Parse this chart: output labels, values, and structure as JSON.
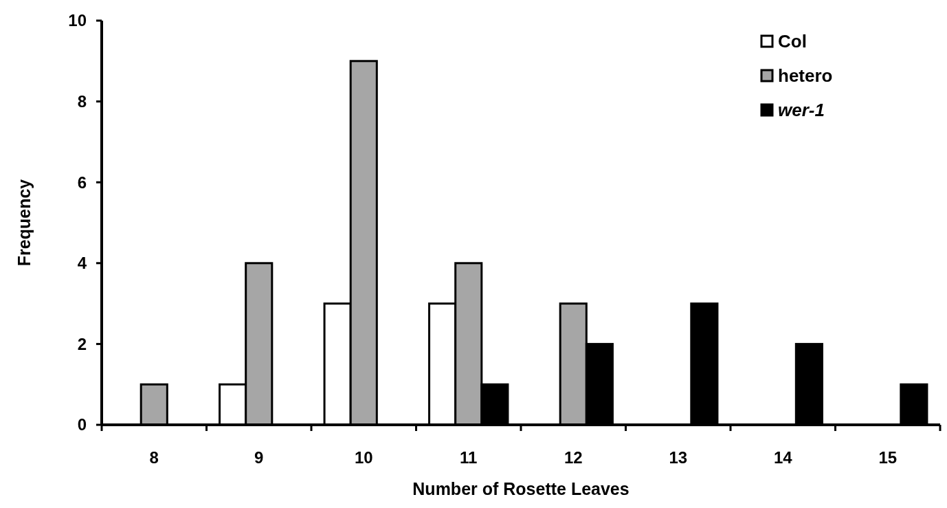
{
  "chart_data": {
    "type": "bar",
    "xlabel": "Number of Rosette Leaves",
    "ylabel": "Frequency",
    "categories": [
      "8",
      "9",
      "10",
      "11",
      "12",
      "13",
      "14",
      "15"
    ],
    "series": [
      {
        "name": "Col",
        "color": "#ffffff",
        "values": [
          0,
          1,
          3,
          3,
          0,
          0,
          0,
          0
        ]
      },
      {
        "name": "hetero",
        "color": "#a6a6a6",
        "values": [
          1,
          4,
          9,
          4,
          3,
          0,
          0,
          0
        ]
      },
      {
        "name": "wer-1",
        "color": "#000000",
        "values": [
          0,
          0,
          0,
          1,
          2,
          3,
          2,
          1
        ]
      }
    ],
    "ylim": [
      0,
      10
    ],
    "yticks": [
      0,
      2,
      4,
      6,
      8,
      10
    ],
    "grid": false,
    "legend": "top right"
  }
}
